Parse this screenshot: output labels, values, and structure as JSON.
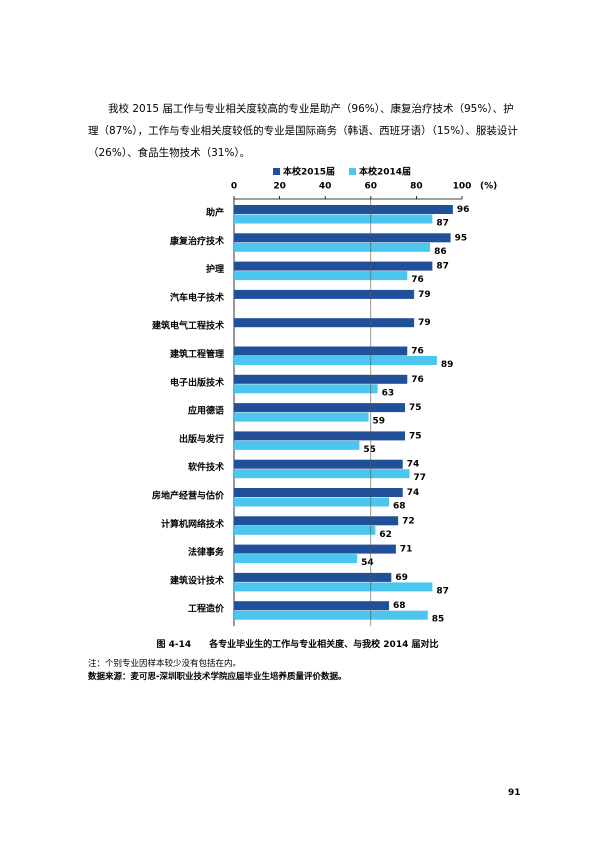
{
  "paragraph": "我校 2015 届工作与专业相关度较高的专业是助产（96%）、康复治疗技术（95%）、护理（87%），工作与专业相关度较低的专业是国际商务（韩语、西班牙语）（15%）、服装设计（26%）、食品生物技术（31%）。",
  "chart_data": {
    "type": "hbar",
    "x_unit": "(%)",
    "categories": [
      "助产",
      "康复治疗技术",
      "护理",
      "汽车电子技术",
      "建筑电气工程技术",
      "建筑工程管理",
      "电子出版技术",
      "应用德语",
      "出版与发行",
      "软件技术",
      "房地产经营与估价",
      "计算机网络技术",
      "法律事务",
      "建筑设计技术",
      "工程造价"
    ],
    "series": [
      {
        "name": "本校2015届",
        "color": "#21509a",
        "values": [
          96,
          95,
          87,
          79,
          79,
          76,
          76,
          75,
          75,
          74,
          74,
          72,
          71,
          69,
          68
        ]
      },
      {
        "name": "本校2014届",
        "color": "#4cc6ee",
        "values": [
          87,
          86,
          76,
          null,
          null,
          89,
          63,
          59,
          55,
          77,
          68,
          62,
          54,
          87,
          85
        ]
      }
    ],
    "xlim": [
      0,
      100
    ],
    "xticks": [
      0,
      20,
      40,
      60,
      80,
      100
    ],
    "reference_line": 60,
    "legend": "top"
  },
  "caption": "图 4-14　　各专业毕业生的工作与专业相关度、与我校 2014 届对比",
  "notes": [
    "注：个别专业因样本较少没有包括在内。",
    "数据来源：麦可思-深圳职业技术学院应届毕业生培养质量评价数据。"
  ],
  "page_number": "91"
}
